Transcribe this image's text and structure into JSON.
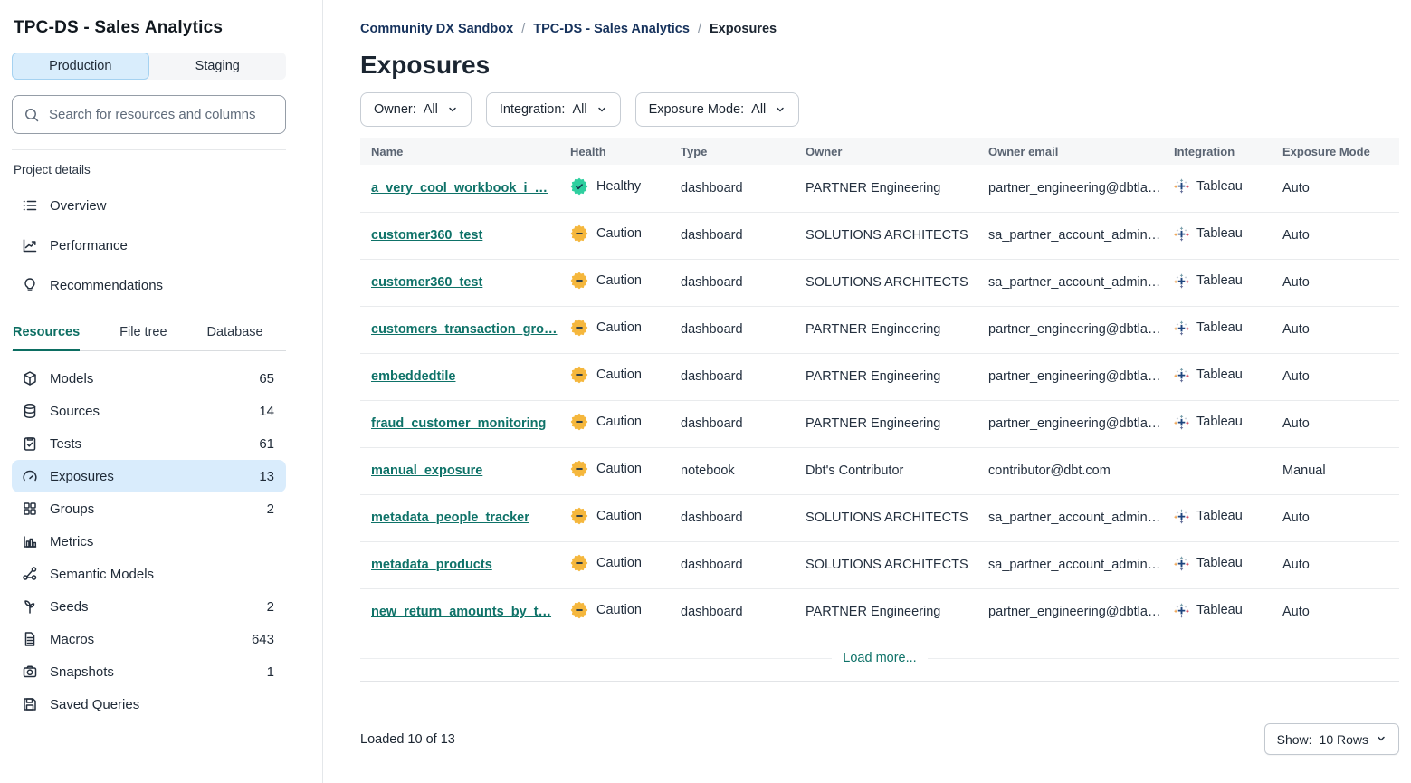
{
  "sidebar": {
    "project_title": "TPC-DS - Sales Analytics",
    "env_tabs": {
      "production": "Production",
      "staging": "Staging"
    },
    "search": {
      "placeholder": "Search for resources and columns"
    },
    "section_label": "Project details",
    "project_links": {
      "overview": "Overview",
      "performance": "Performance",
      "recommendations": "Recommendations"
    },
    "tabs": {
      "resources": "Resources",
      "file_tree": "File tree",
      "database": "Database"
    },
    "resources": [
      {
        "label": "Models",
        "count": "65"
      },
      {
        "label": "Sources",
        "count": "14"
      },
      {
        "label": "Tests",
        "count": "61"
      },
      {
        "label": "Exposures",
        "count": "13",
        "selected": true
      },
      {
        "label": "Groups",
        "count": "2"
      },
      {
        "label": "Metrics",
        "count": ""
      },
      {
        "label": "Semantic Models",
        "count": ""
      },
      {
        "label": "Seeds",
        "count": "2"
      },
      {
        "label": "Macros",
        "count": "643"
      },
      {
        "label": "Snapshots",
        "count": "1"
      },
      {
        "label": "Saved Queries",
        "count": ""
      }
    ]
  },
  "breadcrumb": {
    "items": [
      "Community DX Sandbox",
      "TPC-DS - Sales Analytics",
      "Exposures"
    ],
    "separator": "/"
  },
  "page": {
    "title": "Exposures"
  },
  "filters": [
    {
      "label": "Owner:",
      "value": "All"
    },
    {
      "label": "Integration:",
      "value": "All"
    },
    {
      "label": "Exposure Mode:",
      "value": "All"
    }
  ],
  "table": {
    "columns": [
      "Name",
      "Health",
      "Type",
      "Owner",
      "Owner email",
      "Integration",
      "Exposure Mode"
    ],
    "rows": [
      {
        "name": "a_very_cool_workbook_i_…",
        "health": "Healthy",
        "health_status": "healthy",
        "type": "dashboard",
        "owner": "PARTNER Engineering",
        "owner_email": "partner_engineering@dbtla…",
        "integration": "Tableau",
        "exposure_mode": "Auto"
      },
      {
        "name": "customer360_test",
        "health": "Caution",
        "health_status": "caution",
        "type": "dashboard",
        "owner": "SOLUTIONS ARCHITECTS",
        "owner_email": "sa_partner_account_admin…",
        "integration": "Tableau",
        "exposure_mode": "Auto"
      },
      {
        "name": "customer360_test",
        "health": "Caution",
        "health_status": "caution",
        "type": "dashboard",
        "owner": "SOLUTIONS ARCHITECTS",
        "owner_email": "sa_partner_account_admin…",
        "integration": "Tableau",
        "exposure_mode": "Auto"
      },
      {
        "name": "customers_transaction_gro…",
        "health": "Caution",
        "health_status": "caution",
        "type": "dashboard",
        "owner": "PARTNER Engineering",
        "owner_email": "partner_engineering@dbtla…",
        "integration": "Tableau",
        "exposure_mode": "Auto"
      },
      {
        "name": "embeddedtile",
        "health": "Caution",
        "health_status": "caution",
        "type": "dashboard",
        "owner": "PARTNER Engineering",
        "owner_email": "partner_engineering@dbtla…",
        "integration": "Tableau",
        "exposure_mode": "Auto"
      },
      {
        "name": "fraud_customer_monitoring",
        "health": "Caution",
        "health_status": "caution",
        "type": "dashboard",
        "owner": "PARTNER Engineering",
        "owner_email": "partner_engineering@dbtla…",
        "integration": "Tableau",
        "exposure_mode": "Auto"
      },
      {
        "name": "manual_exposure",
        "health": "Caution",
        "health_status": "caution",
        "type": "notebook",
        "owner": "Dbt's Contributor",
        "owner_email": "contributor@dbt.com",
        "integration": "",
        "exposure_mode": "Manual"
      },
      {
        "name": "metadata_people_tracker",
        "health": "Caution",
        "health_status": "caution",
        "type": "dashboard",
        "owner": "SOLUTIONS ARCHITECTS",
        "owner_email": "sa_partner_account_admin…",
        "integration": "Tableau",
        "exposure_mode": "Auto"
      },
      {
        "name": "metadata_products",
        "health": "Caution",
        "health_status": "caution",
        "type": "dashboard",
        "owner": "SOLUTIONS ARCHITECTS",
        "owner_email": "sa_partner_account_admin…",
        "integration": "Tableau",
        "exposure_mode": "Auto"
      },
      {
        "name": "new_return_amounts_by_t…",
        "health": "Caution",
        "health_status": "caution",
        "type": "dashboard",
        "owner": "PARTNER Engineering",
        "owner_email": "partner_engineering@dbtla…",
        "integration": "Tableau",
        "exposure_mode": "Auto"
      }
    ]
  },
  "pagination": {
    "load_more": "Load more...",
    "loaded_status": "Loaded 10 of 13",
    "show_label": "Show:",
    "show_value": "10 Rows"
  },
  "icons": {
    "search-icon": "magnifier",
    "overview-icon": "list",
    "performance-icon": "line-chart",
    "recommendations-icon": "lightbulb",
    "models-icon": "cube",
    "sources-icon": "database",
    "tests-icon": "clipboard-check",
    "exposures-icon": "gauge",
    "groups-icon": "grid",
    "metrics-icon": "bar-chart",
    "semantic-models-icon": "nodes",
    "seeds-icon": "sprout",
    "macros-icon": "document",
    "snapshots-icon": "camera",
    "saved-queries-icon": "floppy-disk",
    "healthy-icon": "green-seal-check",
    "caution-icon": "yellow-seal-minus",
    "tableau-icon": "tableau-plus-cluster",
    "chevron-down-icon": "chevron"
  },
  "colors": {
    "accent_teal": "#0e7268",
    "selected_item_blue": "#d9ecfc",
    "production_tab_blue": "#d9edfc",
    "healthy_green": "#2fcf9f",
    "caution_yellow": "#f5b73d",
    "breadcrumb_navy": "#16325c",
    "table_header_bg": "#f6f7f8"
  }
}
